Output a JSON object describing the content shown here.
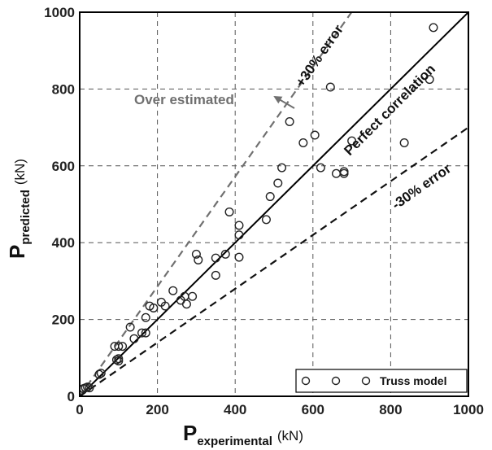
{
  "chart_data": {
    "type": "scatter",
    "xlabel": {
      "main": "P",
      "sub": "experimental",
      "unit": "(kN)"
    },
    "ylabel": {
      "main": "P",
      "sub": "predicted",
      "unit": "(kN)"
    },
    "xlim": [
      0,
      1000
    ],
    "ylim": [
      0,
      1000
    ],
    "xticks": [
      0,
      200,
      400,
      600,
      800,
      1000
    ],
    "yticks": [
      0,
      200,
      400,
      600,
      800,
      1000
    ],
    "grid": true,
    "legend_position": "bottom-right",
    "series": [
      {
        "name": "Truss model",
        "marker": "open-circle",
        "points": [
          [
            10,
            20
          ],
          [
            15,
            22
          ],
          [
            20,
            24
          ],
          [
            25,
            22
          ],
          [
            50,
            57
          ],
          [
            55,
            60
          ],
          [
            90,
            130
          ],
          [
            100,
            130
          ],
          [
            95,
            95
          ],
          [
            100,
            92
          ],
          [
            100,
            98
          ],
          [
            110,
            130
          ],
          [
            130,
            180
          ],
          [
            140,
            150
          ],
          [
            160,
            165
          ],
          [
            170,
            165
          ],
          [
            170,
            205
          ],
          [
            180,
            235
          ],
          [
            190,
            230
          ],
          [
            210,
            245
          ],
          [
            220,
            235
          ],
          [
            240,
            275
          ],
          [
            260,
            250
          ],
          [
            270,
            260
          ],
          [
            275,
            240
          ],
          [
            290,
            260
          ],
          [
            300,
            370
          ],
          [
            305,
            355
          ],
          [
            350,
            360
          ],
          [
            350,
            315
          ],
          [
            375,
            370
          ],
          [
            385,
            480
          ],
          [
            410,
            445
          ],
          [
            410,
            420
          ],
          [
            410,
            362
          ],
          [
            480,
            460
          ],
          [
            490,
            520
          ],
          [
            510,
            555
          ],
          [
            520,
            595
          ],
          [
            540,
            715
          ],
          [
            575,
            660
          ],
          [
            605,
            680
          ],
          [
            620,
            595
          ],
          [
            645,
            805
          ],
          [
            660,
            580
          ],
          [
            680,
            585
          ],
          [
            680,
            580
          ],
          [
            700,
            665
          ],
          [
            835,
            660
          ],
          [
            900,
            825
          ],
          [
            910,
            960
          ]
        ]
      }
    ],
    "reference_lines": [
      {
        "label": "Perfect correlation",
        "slope": 1.0,
        "style": "solid"
      },
      {
        "label": "+30% error",
        "slope": 1.43,
        "style": "dashed-gray"
      },
      {
        "label": "-30% error",
        "slope": 0.7,
        "style": "dashed"
      }
    ],
    "annotations": [
      {
        "text": "Over estimated",
        "style": "arrow"
      }
    ]
  },
  "colors": {
    "axis": "#000000",
    "grid": "#555555",
    "perfect_line": "#000000",
    "plus_error_line": "#707070",
    "minus_error_line": "#111111",
    "marker_stroke": "#222222",
    "over_estimated_text": "#707070"
  }
}
